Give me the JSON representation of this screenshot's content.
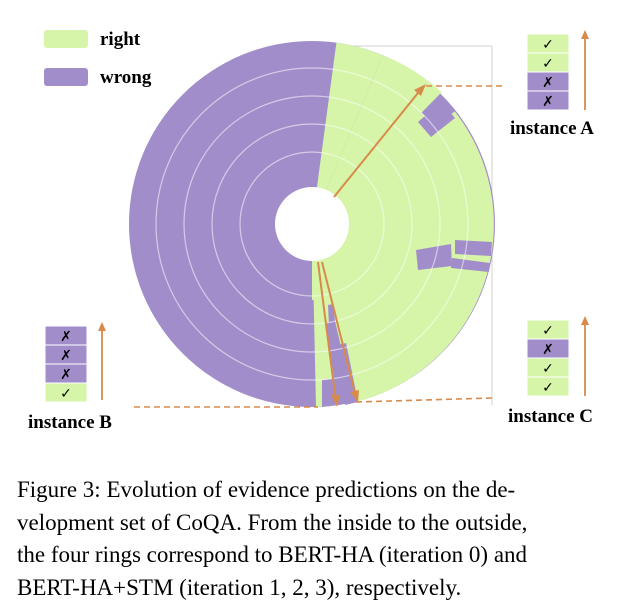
{
  "legend": {
    "right": "right",
    "wrong": "wrong"
  },
  "colors": {
    "right": "#d6f5a8",
    "wrong": "#a28dcb",
    "arrow": "#d88a4a",
    "grid": "#c8c8c8"
  },
  "rings": [
    {
      "name": "BERT-HA (iteration 0)"
    },
    {
      "name": "BERT-HA+STM (iteration 1)"
    },
    {
      "name": "BERT-HA+STM (iteration 2)"
    },
    {
      "name": "BERT-HA+STM (iteration 3)"
    }
  ],
  "instances": [
    {
      "label": "instance A",
      "marks": [
        "✓",
        "✓",
        "✗",
        "✗"
      ],
      "states": [
        "right",
        "right",
        "wrong",
        "wrong"
      ]
    },
    {
      "label": "instance B",
      "marks": [
        "✗",
        "✗",
        "✗",
        "✓"
      ],
      "states": [
        "wrong",
        "wrong",
        "wrong",
        "right"
      ]
    },
    {
      "label": "instance C",
      "marks": [
        "✓",
        "✗",
        "✓",
        "✓"
      ],
      "states": [
        "right",
        "wrong",
        "right",
        "right"
      ]
    }
  ],
  "caption": [
    "Figure 3: Evolution of evidence predictions on the de-",
    "velopment set of CoQA. From the inside to the outside,",
    "the four rings correspond to BERT-HA (iteration 0) and",
    "BERT-HA+STM (iteration 1, 2, 3), respectively."
  ]
}
